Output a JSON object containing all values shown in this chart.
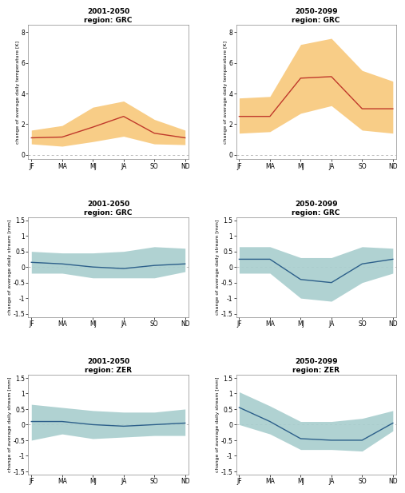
{
  "x_labels": [
    "JF",
    "MA",
    "MJ",
    "JA",
    "SO",
    "ND"
  ],
  "x_vals": [
    0,
    1,
    2,
    3,
    4,
    5
  ],
  "temp_grc_2001_median": [
    1.1,
    1.15,
    1.8,
    2.5,
    1.4,
    1.1
  ],
  "temp_grc_2001_lower": [
    0.7,
    0.55,
    0.85,
    1.2,
    0.7,
    0.65
  ],
  "temp_grc_2001_upper": [
    1.6,
    1.9,
    3.1,
    3.5,
    2.3,
    1.6
  ],
  "temp_grc_2050_median": [
    2.5,
    2.5,
    5.0,
    5.1,
    3.0,
    3.0
  ],
  "temp_grc_2050_lower": [
    1.4,
    1.5,
    2.7,
    3.2,
    1.6,
    1.4
  ],
  "temp_grc_2050_upper": [
    3.7,
    3.8,
    7.2,
    7.6,
    5.5,
    4.8
  ],
  "rain_grc_2001_median": [
    0.15,
    0.1,
    0.0,
    -0.05,
    0.05,
    0.1
  ],
  "rain_grc_2001_lower": [
    -0.2,
    -0.2,
    -0.35,
    -0.35,
    -0.35,
    -0.15
  ],
  "rain_grc_2001_upper": [
    0.5,
    0.45,
    0.45,
    0.5,
    0.65,
    0.6
  ],
  "rain_grc_2050_median": [
    0.25,
    0.25,
    -0.4,
    -0.5,
    0.1,
    0.25
  ],
  "rain_grc_2050_lower": [
    -0.2,
    -0.2,
    -1.0,
    -1.1,
    -0.5,
    -0.2
  ],
  "rain_grc_2050_upper": [
    0.65,
    0.65,
    0.3,
    0.3,
    0.65,
    0.6
  ],
  "rain_zer_2001_median": [
    0.1,
    0.1,
    0.0,
    -0.05,
    0.0,
    0.05
  ],
  "rain_zer_2001_lower": [
    -0.5,
    -0.3,
    -0.45,
    -0.4,
    -0.35,
    -0.35
  ],
  "rain_zer_2001_upper": [
    0.65,
    0.55,
    0.45,
    0.4,
    0.4,
    0.5
  ],
  "rain_zer_2050_median": [
    0.55,
    0.1,
    -0.45,
    -0.5,
    -0.5,
    0.05
  ],
  "rain_zer_2050_lower": [
    0.0,
    -0.3,
    -0.8,
    -0.8,
    -0.85,
    -0.2
  ],
  "rain_zer_2050_upper": [
    1.05,
    0.6,
    0.1,
    0.1,
    0.2,
    0.45
  ],
  "temp_ylim": [
    -0.3,
    8.5
  ],
  "temp_yticks": [
    0,
    2,
    4,
    6,
    8
  ],
  "rain_ylim": [
    -1.6,
    1.6
  ],
  "rain_yticks": [
    -1.5,
    -1.0,
    -0.5,
    0.0,
    0.5,
    1.0,
    1.5
  ],
  "orange_fill": "#f8c87a",
  "orange_line": "#c0392b",
  "blue_fill": "#a8cece",
  "blue_line": "#2c5f8a",
  "zero_line_color": "#bbbbbb",
  "title_2001": "2001-2050",
  "title_2050": "2050-2099",
  "region_grc": "region: GRC",
  "region_zer": "region: ZER",
  "ylabel_temp": "change of average daily temperature [K]",
  "ylabel_rain": "change of average daily stream [mm]",
  "title_fontsize": 6.5,
  "label_fontsize": 4.5,
  "tick_fontsize": 5.5
}
